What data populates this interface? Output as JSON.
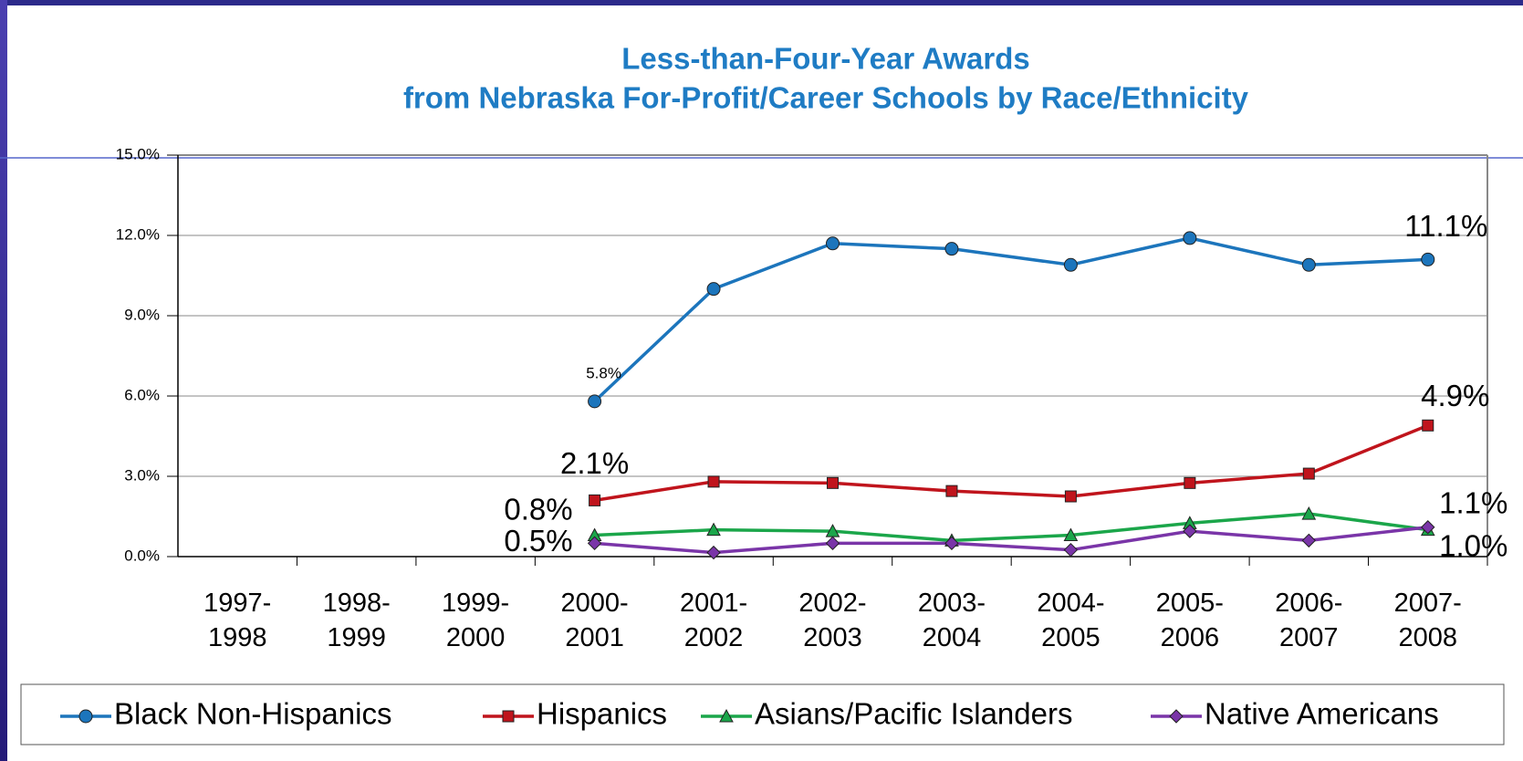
{
  "chart_data": {
    "type": "line",
    "title": [
      "Less-than-Four-Year Awards",
      "from Nebraska For-Profit/Career Schools by Race/Ethnicity"
    ],
    "categories": [
      "1997-1998",
      "1998-1999",
      "1999-2000",
      "2000-2001",
      "2001-2002",
      "2002-2003",
      "2003-2004",
      "2004-2005",
      "2005-2006",
      "2006-2007",
      "2007-2008"
    ],
    "ylim": [
      0,
      15
    ],
    "yticks": [
      {
        "value": 0,
        "label": "0.0%"
      },
      {
        "value": 3,
        "label": "3.0%"
      },
      {
        "value": 6,
        "label": "6.0%"
      },
      {
        "value": 9,
        "label": "9.0%"
      },
      {
        "value": 12,
        "label": "12.0%"
      },
      {
        "value": 15,
        "label": "15.0%"
      }
    ],
    "grid": true,
    "legend": "bottom",
    "series": [
      {
        "name": "Black Non-Hispanics",
        "color": "#1c75bc",
        "marker": "circle",
        "values": [
          null,
          null,
          null,
          5.8,
          10.0,
          11.7,
          11.5,
          10.9,
          11.9,
          10.9,
          11.1
        ],
        "value_labels": [
          null,
          null,
          null,
          "5.8%",
          null,
          null,
          null,
          null,
          null,
          null,
          "11.1%"
        ]
      },
      {
        "name": "Hispanics",
        "color": "#c0141c",
        "marker": "square",
        "values": [
          null,
          null,
          null,
          2.1,
          2.8,
          2.75,
          2.45,
          2.25,
          2.75,
          3.1,
          4.9
        ],
        "value_labels": [
          null,
          null,
          null,
          "2.1%",
          null,
          null,
          null,
          null,
          null,
          null,
          "4.9%"
        ]
      },
      {
        "name": "Asians/Pacific Islanders",
        "color": "#1ba64a",
        "marker": "triangle",
        "values": [
          null,
          null,
          null,
          0.8,
          1.0,
          0.95,
          0.6,
          0.8,
          1.25,
          1.6,
          1.0
        ],
        "value_labels": [
          null,
          null,
          null,
          "0.8%",
          null,
          null,
          null,
          null,
          null,
          null,
          "1.0%"
        ]
      },
      {
        "name": "Native Americans",
        "color": "#7a35a8",
        "marker": "diamond",
        "values": [
          null,
          null,
          null,
          0.5,
          0.15,
          0.5,
          0.5,
          0.25,
          0.95,
          0.6,
          1.1
        ],
        "value_labels": [
          null,
          null,
          null,
          "0.5%",
          null,
          null,
          null,
          null,
          null,
          null,
          "1.1%"
        ]
      }
    ]
  }
}
